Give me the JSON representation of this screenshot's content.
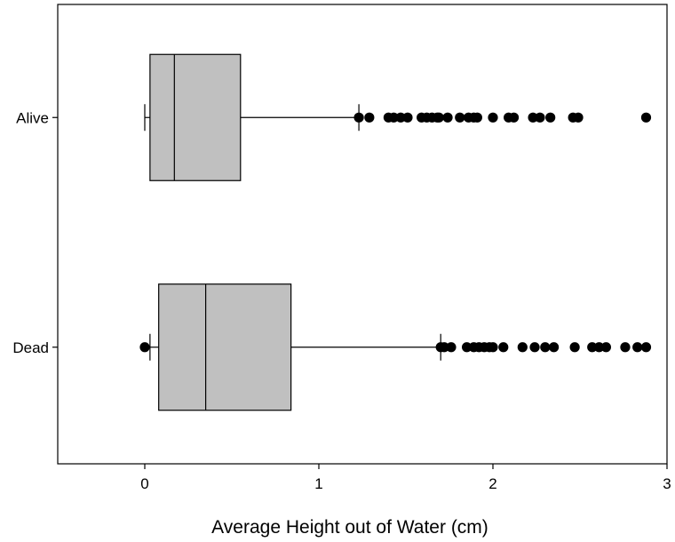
{
  "chart_data": {
    "type": "boxplot",
    "orientation": "horizontal",
    "title": "",
    "xlabel": "Average Height out of Water (cm)",
    "ylabel": "",
    "xlim": [
      -0.5,
      3.0
    ],
    "xticks": [
      0,
      1,
      2,
      3
    ],
    "xtick_labels": [
      "0",
      "1",
      "2",
      "3"
    ],
    "grid": false,
    "legend": "none",
    "colors": {
      "box_fill": "#c0c0c0",
      "line": "#000000",
      "outlier": "#000000"
    },
    "categories": [
      "Alive",
      "Dead"
    ],
    "boxes": [
      {
        "category": "Alive",
        "whisker_low": 0.0,
        "q1": 0.03,
        "median": 0.17,
        "q3": 0.55,
        "whisker_high": 1.23,
        "outliers": [
          1.23,
          1.29,
          1.4,
          1.43,
          1.47,
          1.51,
          1.59,
          1.62,
          1.65,
          1.68,
          1.69,
          1.74,
          1.81,
          1.86,
          1.89,
          1.91,
          2.0,
          2.09,
          2.12,
          2.23,
          2.27,
          2.33,
          2.46,
          2.49,
          2.88
        ]
      },
      {
        "category": "Dead",
        "whisker_low": 0.03,
        "q1": 0.08,
        "median": 0.35,
        "q3": 0.84,
        "whisker_high": 1.7,
        "outliers": [
          0.0,
          1.7,
          1.72,
          1.76,
          1.85,
          1.89,
          1.92,
          1.95,
          1.98,
          2.0,
          2.06,
          2.17,
          2.24,
          2.3,
          2.35,
          2.47,
          2.57,
          2.61,
          2.65,
          2.76,
          2.83,
          2.88
        ]
      }
    ]
  }
}
